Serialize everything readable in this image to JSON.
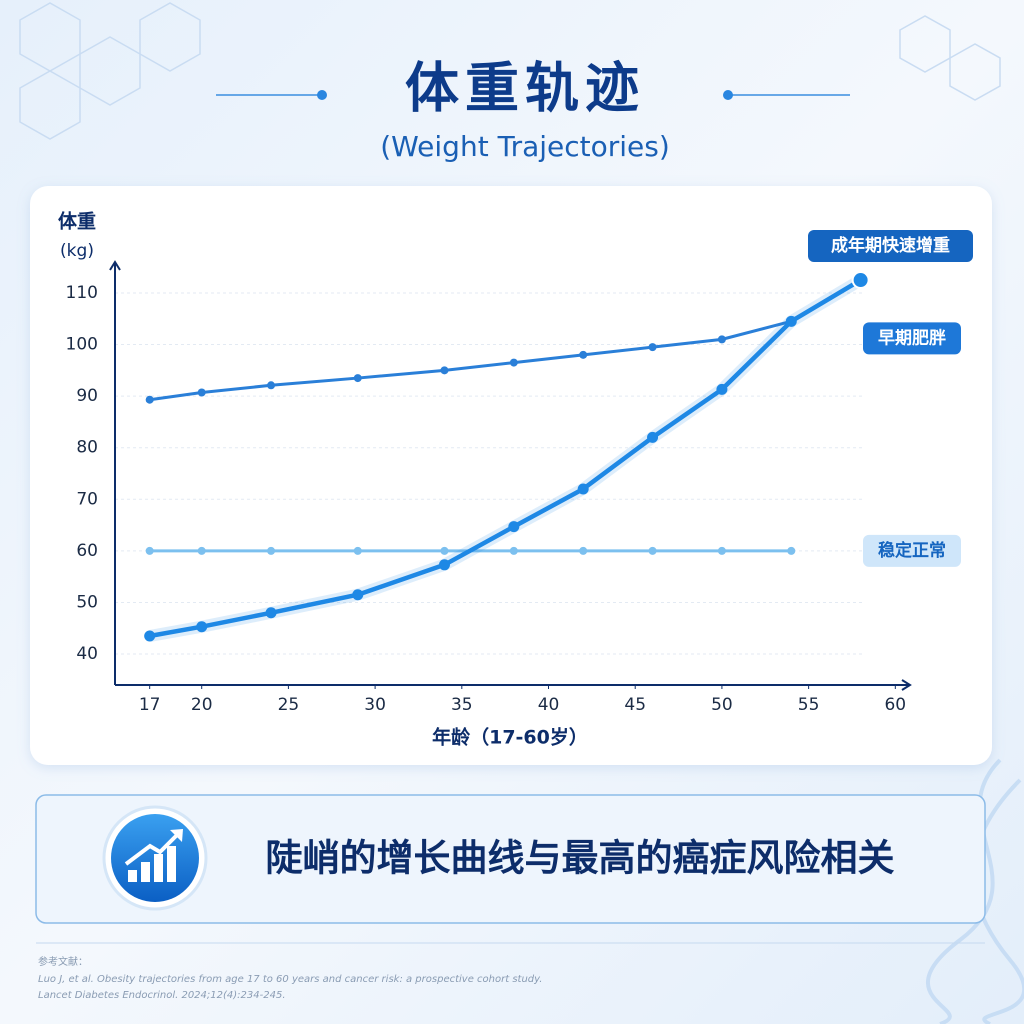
{
  "header": {
    "title": "体重轨迹",
    "subtitle": "(Weight Trajectories)"
  },
  "chart_data": {
    "type": "line",
    "y_label": "体重",
    "y_unit": "(kg)",
    "x_label": "年龄（17-60岁）",
    "xlim": [
      15,
      62
    ],
    "xticks": [
      17,
      20,
      25,
      30,
      35,
      40,
      45,
      50,
      55,
      60
    ],
    "ylim": [
      34,
      116
    ],
    "yticks": [
      40,
      50,
      60,
      70,
      80,
      90,
      100,
      110
    ],
    "grid": true,
    "series": [
      {
        "name": "成年期快速增重",
        "color": "#1e88e5",
        "x": [
          17,
          20,
          24,
          29,
          34,
          38,
          42,
          46,
          50,
          54,
          58
        ],
        "values": [
          43.5,
          45.3,
          48,
          51.5,
          57.3,
          64.7,
          72,
          82,
          91.3,
          104.5,
          112.5
        ]
      },
      {
        "name": "早期肥胖",
        "color": "#2a7fd8",
        "x": [
          17,
          20,
          24,
          29,
          34,
          38,
          42,
          46,
          50,
          54
        ],
        "values": [
          89.3,
          90.7,
          92.1,
          93.5,
          95,
          96.5,
          98,
          99.5,
          101,
          104.5
        ]
      },
      {
        "name": "稳定正常",
        "color": "#7cc0ef",
        "x": [
          17,
          20,
          24,
          29,
          34,
          38,
          42,
          46,
          50,
          54
        ],
        "values": [
          60,
          60,
          60,
          60,
          60,
          60,
          60,
          60,
          60,
          60
        ]
      }
    ]
  },
  "banner": {
    "text": "陡峭的增长曲线与最高的癌症风险相关"
  },
  "references": {
    "heading": "参考文献：",
    "lines": [
      "Luo J, et al. Obesity trajectories from age 17 to 60 years and cancer risk: a prospective cohort study.",
      "Lancet Diabetes Endocrinol. 2024;12(4):234-245."
    ]
  }
}
